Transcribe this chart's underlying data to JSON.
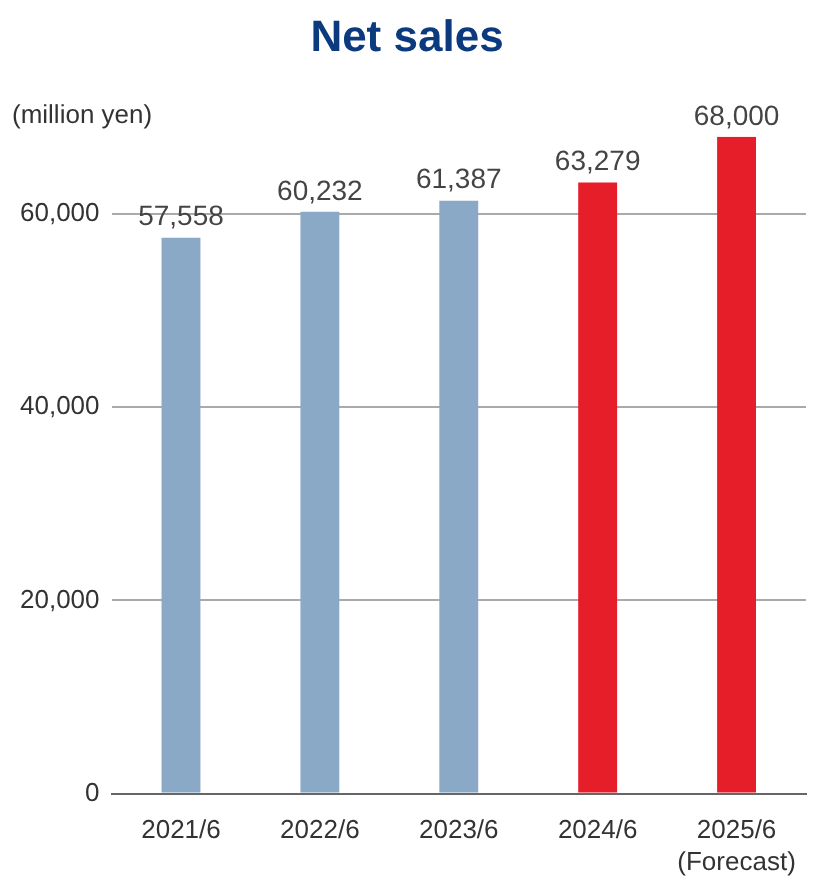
{
  "chart_data": {
    "type": "bar",
    "title": "Net sales",
    "ylabel": "(million yen)",
    "categories": [
      "2021/6",
      "2022/6",
      "2023/6",
      "2024/6",
      "2025/6\n(Forecast)"
    ],
    "values": [
      57558,
      60232,
      61387,
      63279,
      68000
    ],
    "colors": [
      "#8aa9c6",
      "#8aa9c6",
      "#8aa9c6",
      "#e61e2a",
      "#e61e2a"
    ],
    "value_labels": [
      "57,558",
      "60,232",
      "61,387",
      "63,279",
      "68,000"
    ],
    "ylim": [
      0,
      68000
    ],
    "yticks": [
      0,
      {
        "value": 20000,
        "label": "20,000"
      },
      {
        "value": 40000,
        "label": "40,000"
      },
      {
        "value": 60000,
        "label": "60,000"
      }
    ],
    "grid": "y",
    "legend": false
  }
}
